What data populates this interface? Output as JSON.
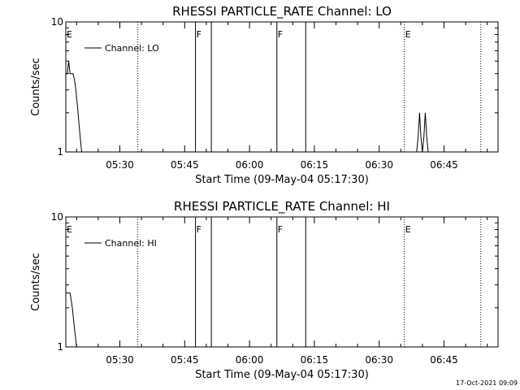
{
  "footer_timestamp": "17-Oct-2021 09:09",
  "chart_data": [
    {
      "type": "line",
      "title": "RHESSI PARTICLE_RATE Channel: LO",
      "xlabel": "Start Time (09-May-04 05:17:30)",
      "ylabel": "Counts/sec",
      "yscale": "log",
      "ylim": [
        1,
        10
      ],
      "xlim": [
        "05:17:30",
        "06:57:30"
      ],
      "yticks": [
        {
          "value": 1,
          "label": "1"
        },
        {
          "value": 10,
          "label": "10"
        }
      ],
      "xticks": [
        "05:30",
        "05:45",
        "06:00",
        "06:15",
        "06:30",
        "06:45"
      ],
      "legend": {
        "entries": [
          "Channel: LO"
        ],
        "placement": "top-left"
      },
      "grid": false,
      "series": [
        {
          "name": "Channel: LO",
          "x": [
            "05:17:30",
            "05:17:50",
            "05:18:10",
            "05:18:30",
            "05:18:50",
            "05:19:10",
            "05:19:30",
            "05:19:50",
            "05:20:10",
            "05:20:30",
            "05:20:50",
            "05:21:10",
            "05:21:30"
          ],
          "y": [
            4,
            4,
            5,
            4,
            4,
            4,
            3.6,
            3,
            2.3,
            1.7,
            1.3,
            1,
            1
          ]
        },
        {
          "name": "",
          "x": [
            "06:38:40",
            "06:39:00",
            "06:39:20",
            "06:39:40",
            "06:40:00",
            "06:40:20",
            "06:40:40",
            "06:41:00",
            "06:41:20"
          ],
          "y": [
            1,
            1.3,
            2,
            1.3,
            1,
            1.3,
            2,
            1.3,
            1
          ]
        }
      ],
      "markers": [
        {
          "time": "05:17:30",
          "label": "E",
          "style": "dotted"
        },
        {
          "time": "05:34:10",
          "label": "",
          "style": "dotted"
        },
        {
          "time": "05:47:30",
          "label": "F",
          "style": "solid"
        },
        {
          "time": "05:51:10",
          "label": "",
          "style": "solid"
        },
        {
          "time": "06:06:20",
          "label": "F",
          "style": "solid"
        },
        {
          "time": "06:13:00",
          "label": "",
          "style": "solid"
        },
        {
          "time": "06:35:50",
          "label": "E",
          "style": "dotted"
        },
        {
          "time": "06:53:30",
          "label": "",
          "style": "dotted"
        }
      ]
    },
    {
      "type": "line",
      "title": "RHESSI PARTICLE_RATE Channel: HI",
      "xlabel": "Start Time (09-May-04 05:17:30)",
      "ylabel": "Counts/sec",
      "yscale": "log",
      "ylim": [
        1,
        10
      ],
      "xlim": [
        "05:17:30",
        "06:57:30"
      ],
      "yticks": [
        {
          "value": 1,
          "label": "1"
        },
        {
          "value": 10,
          "label": "10"
        }
      ],
      "xticks": [
        "05:30",
        "05:45",
        "06:00",
        "06:15",
        "06:30",
        "06:45"
      ],
      "legend": {
        "entries": [
          "Channel: HI"
        ],
        "placement": "top-left"
      },
      "grid": false,
      "series": [
        {
          "name": "Channel: HI",
          "x": [
            "05:17:30",
            "05:18:00",
            "05:18:30",
            "05:19:00",
            "05:19:30",
            "05:20:00"
          ],
          "y": [
            2.6,
            2.6,
            2.6,
            2.0,
            1.4,
            1
          ]
        }
      ],
      "markers": [
        {
          "time": "05:17:30",
          "label": "E",
          "style": "dotted"
        },
        {
          "time": "05:34:10",
          "label": "",
          "style": "dotted"
        },
        {
          "time": "05:47:30",
          "label": "F",
          "style": "solid"
        },
        {
          "time": "05:51:10",
          "label": "",
          "style": "solid"
        },
        {
          "time": "06:06:20",
          "label": "F",
          "style": "solid"
        },
        {
          "time": "06:13:00",
          "label": "",
          "style": "solid"
        },
        {
          "time": "06:35:50",
          "label": "E",
          "style": "dotted"
        },
        {
          "time": "06:53:30",
          "label": "",
          "style": "dotted"
        }
      ]
    }
  ]
}
